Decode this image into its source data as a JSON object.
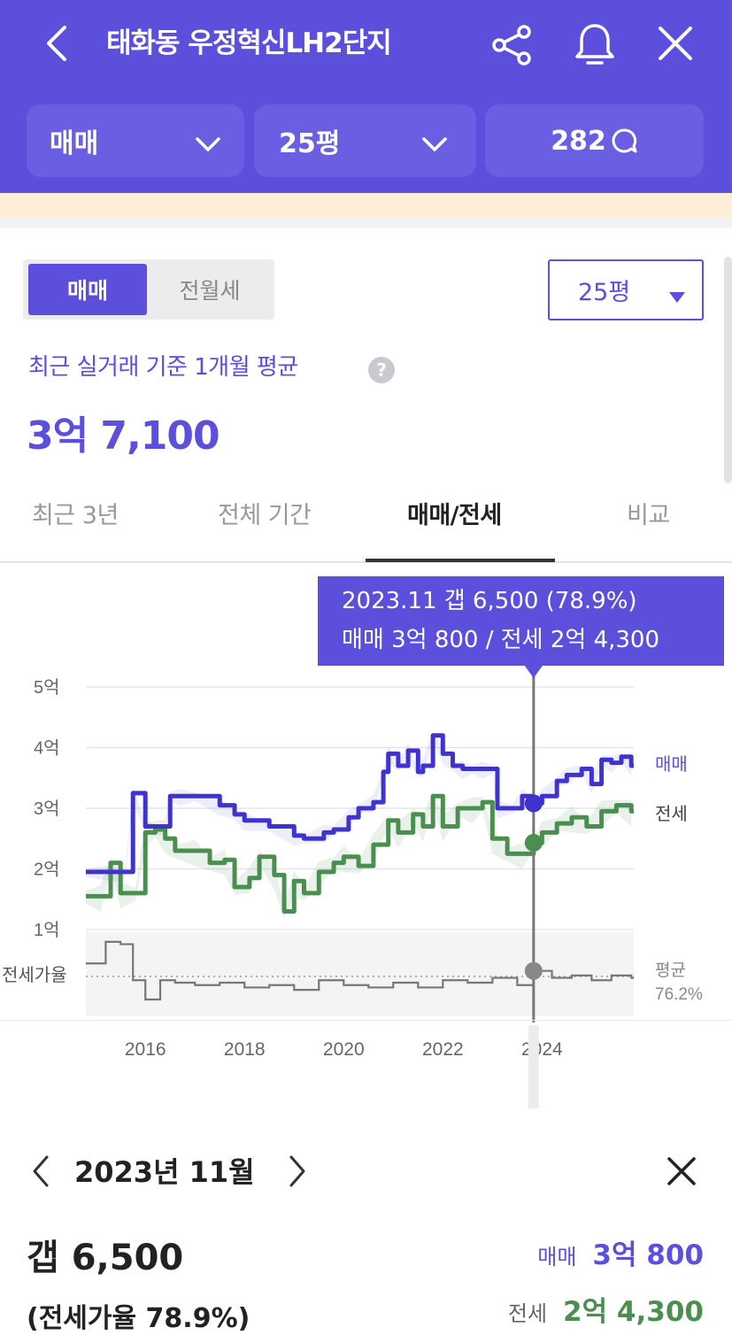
{
  "header": {
    "title": "태화동 우정혁신LH2단지",
    "filter_type": "매매",
    "filter_size": "25평",
    "comment_count": "282"
  },
  "colors": {
    "brand": "#5b4fdc",
    "jeonse": "#4a8f4f",
    "ratio": "#777777"
  },
  "summary": {
    "segment_active": "매매",
    "segment_inactive": "전월세",
    "size_dropdown": "25평",
    "basis_label": "최근 실거래 기준 1개월 평균",
    "price": "3억 7,100"
  },
  "tabs": [
    "최근 3년",
    "전체 기간",
    "매매/전세",
    "비교"
  ],
  "active_tab": "매매/전세",
  "tooltip": {
    "line1": "2023.11  갭 6,500 (78.9%)",
    "line2": "매매 3억 800 / 전세 2억 4,300"
  },
  "chart_data": {
    "type": "line",
    "y_ticks": [
      "5억",
      "4억",
      "3억",
      "2억",
      "1억"
    ],
    "y_unit": "억",
    "ylim": [
      1,
      5
    ],
    "x_ticks": [
      "2016",
      "2018",
      "2020",
      "2022",
      "2024"
    ],
    "ratio_axis_label": "전세가율",
    "ratio_avg_label": "평균",
    "ratio_avg_value": "76.2%",
    "selected_x": 2023.83,
    "series": [
      {
        "name": "매매",
        "x": [
          2014.8,
          2015.4,
          2015.6,
          2015.75,
          2016.0,
          2016.4,
          2016.5,
          2016.7,
          2017.0,
          2017.5,
          2017.8,
          2018.0,
          2018.5,
          2019.0,
          2019.2,
          2019.6,
          2019.8,
          2020.1,
          2020.3,
          2020.6,
          2020.8,
          2020.9,
          2021.1,
          2021.3,
          2021.5,
          2021.6,
          2021.8,
          2022.0,
          2022.2,
          2022.4,
          2022.6,
          2022.8,
          2023.0,
          2023.1,
          2023.4,
          2023.6,
          2023.83,
          2024.0,
          2024.3,
          2024.5,
          2024.8,
          2025.0,
          2025.2,
          2025.4,
          2025.6,
          2025.8
        ],
        "values": [
          1.95,
          1.95,
          1.95,
          3.25,
          2.7,
          2.7,
          3.2,
          3.2,
          3.2,
          3.05,
          2.9,
          2.8,
          2.7,
          2.55,
          2.5,
          2.6,
          2.65,
          2.85,
          3.0,
          3.1,
          3.6,
          3.9,
          3.7,
          3.95,
          3.6,
          3.7,
          4.2,
          3.9,
          3.7,
          3.65,
          3.65,
          3.65,
          3.65,
          3.0,
          3.0,
          3.2,
          3.08,
          3.2,
          3.45,
          3.55,
          3.65,
          3.4,
          3.8,
          3.75,
          3.85,
          3.7
        ]
      },
      {
        "name": "전세",
        "x": [
          2014.8,
          2015.1,
          2015.3,
          2015.5,
          2015.8,
          2016.0,
          2016.2,
          2016.4,
          2016.6,
          2017.0,
          2017.3,
          2017.6,
          2017.8,
          2018.1,
          2018.3,
          2018.6,
          2018.8,
          2019.0,
          2019.2,
          2019.5,
          2019.8,
          2020.0,
          2020.3,
          2020.6,
          2020.9,
          2021.1,
          2021.4,
          2021.6,
          2021.8,
          2022.0,
          2022.3,
          2022.6,
          2022.8,
          2023.0,
          2023.3,
          2023.6,
          2023.83,
          2024.0,
          2024.3,
          2024.6,
          2024.9,
          2025.2,
          2025.5,
          2025.8
        ],
        "values": [
          1.55,
          1.55,
          2.1,
          1.6,
          1.6,
          2.6,
          2.65,
          2.5,
          2.3,
          2.3,
          2.1,
          2.15,
          1.7,
          1.85,
          2.2,
          1.9,
          1.3,
          1.8,
          1.6,
          1.95,
          2.1,
          2.2,
          2.05,
          2.4,
          2.8,
          2.6,
          2.9,
          2.7,
          3.2,
          2.7,
          3.0,
          3.0,
          3.1,
          2.5,
          2.25,
          2.25,
          2.43,
          2.6,
          2.75,
          2.85,
          2.7,
          2.95,
          3.05,
          2.95
        ]
      },
      {
        "name": "전세가율",
        "x": [
          2014.8,
          2015.2,
          2015.5,
          2015.75,
          2016.0,
          2016.3,
          2016.6,
          2017.0,
          2017.5,
          2018.0,
          2018.5,
          2019.0,
          2019.5,
          2020.0,
          2020.5,
          2021.0,
          2021.5,
          2022.0,
          2022.5,
          2023.0,
          2023.5,
          2023.83,
          2024.2,
          2024.6,
          2025.0,
          2025.4,
          2025.8
        ],
        "values": [
          82,
          91,
          90,
          75,
          67,
          75,
          74,
          73,
          74,
          72,
          73,
          71,
          75,
          73,
          72,
          74,
          72,
          75,
          74,
          76,
          73,
          78.9,
          76,
          77,
          75,
          77,
          76
        ]
      }
    ]
  },
  "detail": {
    "month": "2023년 11월",
    "gap": "갭 6,500",
    "ratio": "(전세가율 78.9%)",
    "sale_label": "매매",
    "sale_value": "3억 800",
    "jeonse_label": "전세",
    "jeonse_value": "2억 4,300"
  }
}
